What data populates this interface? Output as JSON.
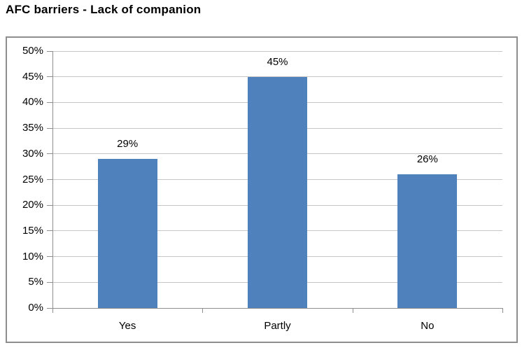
{
  "chart_data": {
    "type": "bar",
    "title": "AFC barriers - Lack of companion",
    "categories": [
      "Yes",
      "Partly",
      "No"
    ],
    "values": [
      29,
      45,
      26
    ],
    "data_labels": [
      "29%",
      "45%",
      "26%"
    ],
    "y_ticks": [
      0,
      5,
      10,
      15,
      20,
      25,
      30,
      35,
      40,
      45,
      50
    ],
    "y_tick_labels": [
      "0%",
      "5%",
      "10%",
      "15%",
      "20%",
      "25%",
      "30%",
      "35%",
      "40%",
      "45%",
      "50%"
    ],
    "ylim": [
      0,
      50
    ],
    "xlabel": "",
    "ylabel": "",
    "grid": "horizontal",
    "legend": "none",
    "bar_color": "#4F81BD",
    "gridline_color": "#C6C6C6",
    "axis_color": "#8E8E8E",
    "border_color": "#8E8E8E",
    "text_color": "#000000",
    "background": "#FFFFFF"
  }
}
